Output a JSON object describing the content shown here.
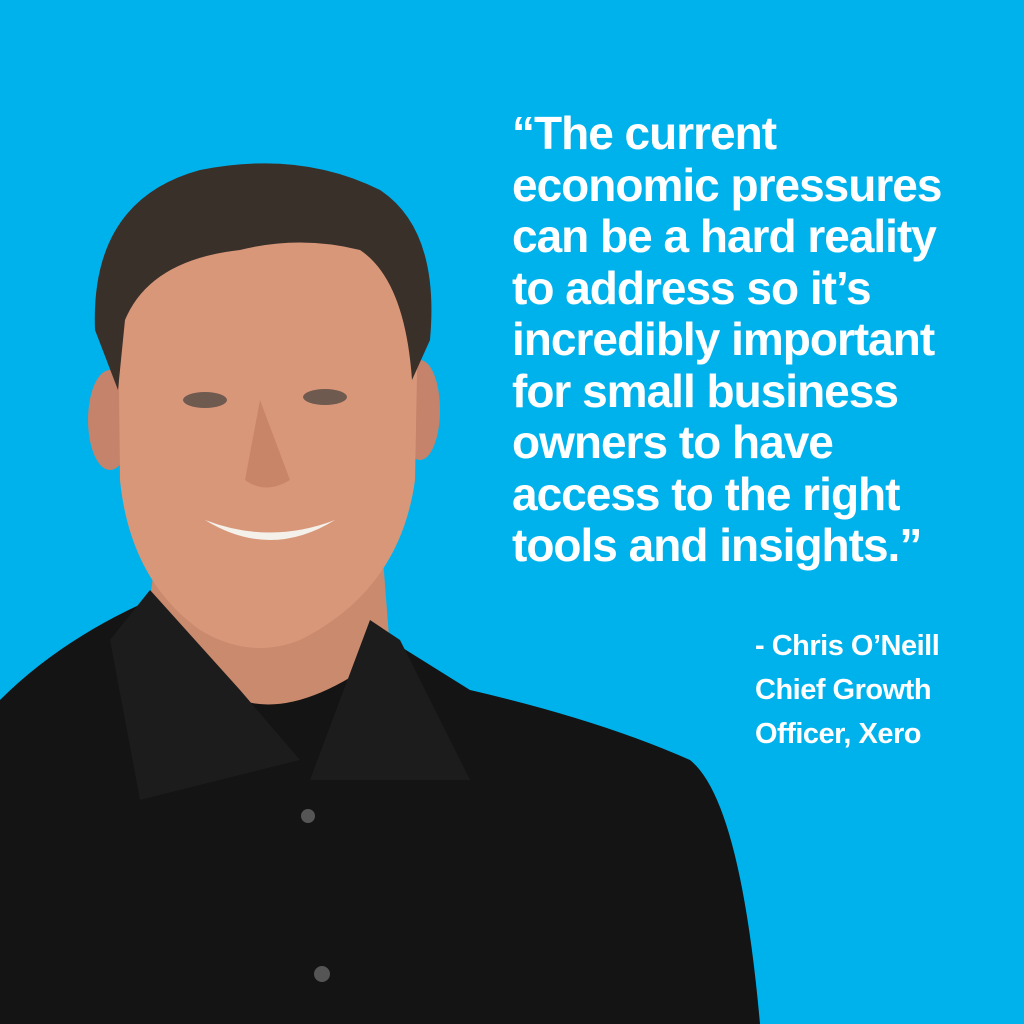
{
  "colors": {
    "background": "#00b2ec",
    "text": "#ffffff"
  },
  "quote": {
    "lines": [
      "“The current",
      "economic pressures",
      "can be a hard reality",
      "to address so it’s",
      "incredibly important",
      "for small business",
      "owners to have",
      "access to the right",
      "tools and insights.”"
    ]
  },
  "attribution": {
    "name": "- Chris O’Neill",
    "title_line1": "Chief Growth",
    "title_line2": "Officer, Xero"
  }
}
